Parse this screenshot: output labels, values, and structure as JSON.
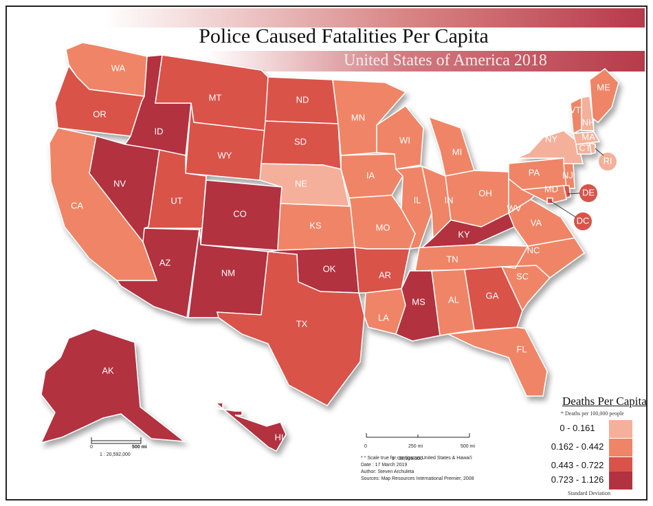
{
  "title": "Police Caused Fatalities Per Capita",
  "subtitle": "United States of America 2018",
  "legend": {
    "title": "Deaths Per Capita",
    "note": "* Deaths per 100,000 people",
    "classification": "Standard Deviation",
    "classes": [
      {
        "label": "0 - 0.161",
        "color": "#f4b09a"
      },
      {
        "label": "0.162 - 0.442",
        "color": "#ef8566"
      },
      {
        "label": "0.443 - 0.722",
        "color": "#d9534a"
      },
      {
        "label": "0.723 - 1.126",
        "color": "#b2333f"
      }
    ]
  },
  "scales": {
    "main": {
      "ticks": [
        "0",
        "250 mi",
        "500 mi"
      ],
      "ratio": "1 : 38,016,000"
    },
    "alaska": {
      "ticks": [
        "0",
        "500 mi"
      ],
      "ratio": "1 : 20,592,000"
    }
  },
  "credits": {
    "line1": "* * Scale true for contiguous United States & Hawai'i",
    "line2": "Date : 17 March 2019",
    "line3": "Author: Steven Archuleta",
    "line4": "Sources: Map Resources International Premier, 2008"
  },
  "states": [
    {
      "abbr": "WA",
      "class": 1
    },
    {
      "abbr": "OR",
      "class": 2
    },
    {
      "abbr": "CA",
      "class": 1
    },
    {
      "abbr": "ID",
      "class": 3
    },
    {
      "abbr": "NV",
      "class": 3
    },
    {
      "abbr": "MT",
      "class": 2
    },
    {
      "abbr": "WY",
      "class": 2
    },
    {
      "abbr": "UT",
      "class": 2
    },
    {
      "abbr": "AZ",
      "class": 3
    },
    {
      "abbr": "CO",
      "class": 3
    },
    {
      "abbr": "NM",
      "class": 3
    },
    {
      "abbr": "ND",
      "class": 2
    },
    {
      "abbr": "SD",
      "class": 2
    },
    {
      "abbr": "NE",
      "class": 0
    },
    {
      "abbr": "KS",
      "class": 1
    },
    {
      "abbr": "OK",
      "class": 3
    },
    {
      "abbr": "TX",
      "class": 2
    },
    {
      "abbr": "MN",
      "class": 1
    },
    {
      "abbr": "IA",
      "class": 1
    },
    {
      "abbr": "MO",
      "class": 1
    },
    {
      "abbr": "AR",
      "class": 2
    },
    {
      "abbr": "LA",
      "class": 1
    },
    {
      "abbr": "WI",
      "class": 1
    },
    {
      "abbr": "IL",
      "class": 1
    },
    {
      "abbr": "MI",
      "class": 1
    },
    {
      "abbr": "IN",
      "class": 1
    },
    {
      "abbr": "OH",
      "class": 1
    },
    {
      "abbr": "KY",
      "class": 3
    },
    {
      "abbr": "TN",
      "class": 1
    },
    {
      "abbr": "MS",
      "class": 3
    },
    {
      "abbr": "AL",
      "class": 1
    },
    {
      "abbr": "GA",
      "class": 2
    },
    {
      "abbr": "FL",
      "class": 1
    },
    {
      "abbr": "SC",
      "class": 1
    },
    {
      "abbr": "NC",
      "class": 1
    },
    {
      "abbr": "VA",
      "class": 1
    },
    {
      "abbr": "WV",
      "class": 1
    },
    {
      "abbr": "PA",
      "class": 1
    },
    {
      "abbr": "NY",
      "class": 0
    },
    {
      "abbr": "VT",
      "class": 1
    },
    {
      "abbr": "NH",
      "class": 0
    },
    {
      "abbr": "ME",
      "class": 1
    },
    {
      "abbr": "MA",
      "class": 0
    },
    {
      "abbr": "CT",
      "class": 0
    },
    {
      "abbr": "RI",
      "class": 0
    },
    {
      "abbr": "NJ",
      "class": 1
    },
    {
      "abbr": "MD",
      "class": 1
    },
    {
      "abbr": "DE",
      "class": 2
    },
    {
      "abbr": "DC",
      "class": 2
    },
    {
      "abbr": "AK",
      "class": 3
    },
    {
      "abbr": "HI",
      "class": 3
    }
  ]
}
